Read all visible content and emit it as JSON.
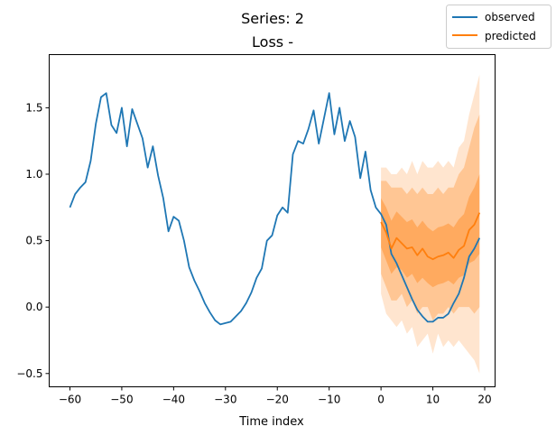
{
  "figure": {
    "suptitle": "Series: 2",
    "title": "Loss -"
  },
  "chart_data": {
    "type": "line",
    "title": "Loss -",
    "suptitle": "Series: 2",
    "xlabel": "Time index",
    "ylabel": "",
    "xlim": [
      -64,
      22
    ],
    "ylim": [
      -0.6,
      1.9
    ],
    "xticks": [
      -60,
      -50,
      -40,
      -30,
      -20,
      -10,
      0,
      10,
      20
    ],
    "yticks": [
      -0.5,
      0.0,
      0.5,
      1.0,
      1.5
    ],
    "grid": false,
    "legend": {
      "placement": "top-right (outside axes)"
    },
    "series": [
      {
        "name": "observed",
        "color": "#1f77b4",
        "x": [
          -60,
          -59,
          -58,
          -57,
          -56,
          -55,
          -54,
          -53,
          -52,
          -51,
          -50,
          -49,
          -48,
          -47,
          -46,
          -45,
          -44,
          -43,
          -42,
          -41,
          -40,
          -39,
          -38,
          -37,
          -36,
          -35,
          -34,
          -33,
          -32,
          -31,
          -30,
          -29,
          -28,
          -27,
          -26,
          -25,
          -24,
          -23,
          -22,
          -21,
          -20,
          -19,
          -18,
          -17,
          -16,
          -15,
          -14,
          -13,
          -12,
          -11,
          -10,
          -9,
          -8,
          -7,
          -6,
          -5,
          -4,
          -3,
          -2,
          -1,
          0,
          1,
          2,
          3,
          4,
          5,
          6,
          7,
          8,
          9,
          10,
          11,
          12,
          13,
          14,
          15,
          16,
          17,
          18,
          19
        ],
        "y": [
          0.75,
          0.85,
          0.9,
          0.94,
          1.1,
          1.38,
          1.58,
          1.61,
          1.37,
          1.31,
          1.5,
          1.21,
          1.49,
          1.38,
          1.27,
          1.05,
          1.21,
          0.99,
          0.82,
          0.57,
          0.68,
          0.65,
          0.5,
          0.3,
          0.2,
          0.12,
          0.03,
          -0.04,
          -0.1,
          -0.13,
          -0.12,
          -0.11,
          -0.07,
          -0.03,
          0.03,
          0.11,
          0.22,
          0.29,
          0.5,
          0.54,
          0.69,
          0.75,
          0.71,
          1.15,
          1.25,
          1.23,
          1.34,
          1.48,
          1.23,
          1.42,
          1.61,
          1.3,
          1.5,
          1.25,
          1.4,
          1.28,
          0.97,
          1.17,
          0.88,
          0.75,
          0.7,
          0.62,
          0.4,
          0.33,
          0.24,
          0.15,
          0.06,
          -0.02,
          -0.07,
          -0.11,
          -0.11,
          -0.08,
          -0.08,
          -0.05,
          0.03,
          0.1,
          0.22,
          0.38,
          0.44,
          0.52
        ]
      },
      {
        "name": "predicted",
        "color": "#ff7f0e",
        "x": [
          0,
          1,
          2,
          3,
          4,
          5,
          6,
          7,
          8,
          9,
          10,
          11,
          12,
          13,
          14,
          15,
          16,
          17,
          18,
          19
        ],
        "y": [
          0.64,
          0.56,
          0.44,
          0.52,
          0.48,
          0.44,
          0.45,
          0.39,
          0.44,
          0.38,
          0.36,
          0.38,
          0.39,
          0.41,
          0.37,
          0.43,
          0.46,
          0.58,
          0.62,
          0.71
        ],
        "bands": [
          {
            "level": "outer",
            "lower": [
              0.1,
              -0.05,
              -0.1,
              -0.15,
              -0.1,
              -0.2,
              -0.15,
              -0.3,
              -0.25,
              -0.2,
              -0.35,
              -0.2,
              -0.3,
              -0.25,
              -0.3,
              -0.25,
              -0.3,
              -0.35,
              -0.4,
              -0.5
            ],
            "upper": [
              1.05,
              1.05,
              1.0,
              1.0,
              1.05,
              1.0,
              1.1,
              1.0,
              1.1,
              1.05,
              1.05,
              1.1,
              1.05,
              1.1,
              1.05,
              1.2,
              1.25,
              1.45,
              1.6,
              1.75
            ]
          },
          {
            "level": "middle",
            "lower": [
              0.25,
              0.15,
              0.05,
              0.05,
              0.1,
              0.0,
              0.05,
              -0.05,
              0.0,
              0.0,
              -0.1,
              -0.05,
              -0.05,
              0.0,
              -0.05,
              0.0,
              0.0,
              0.0,
              -0.05,
              0.0
            ],
            "upper": [
              0.95,
              0.95,
              0.9,
              0.9,
              0.9,
              0.85,
              0.9,
              0.85,
              0.9,
              0.85,
              0.85,
              0.9,
              0.85,
              0.9,
              0.9,
              1.0,
              1.05,
              1.2,
              1.35,
              1.45
            ]
          },
          {
            "level": "inner",
            "lower": [
              0.45,
              0.35,
              0.25,
              0.3,
              0.28,
              0.22,
              0.25,
              0.18,
              0.22,
              0.18,
              0.15,
              0.17,
              0.18,
              0.2,
              0.17,
              0.22,
              0.24,
              0.33,
              0.35,
              0.4
            ],
            "upper": [
              0.82,
              0.75,
              0.65,
              0.72,
              0.68,
              0.64,
              0.66,
              0.6,
              0.65,
              0.6,
              0.57,
              0.6,
              0.61,
              0.63,
              0.6,
              0.66,
              0.7,
              0.83,
              0.9,
              1.0
            ]
          }
        ]
      }
    ]
  }
}
